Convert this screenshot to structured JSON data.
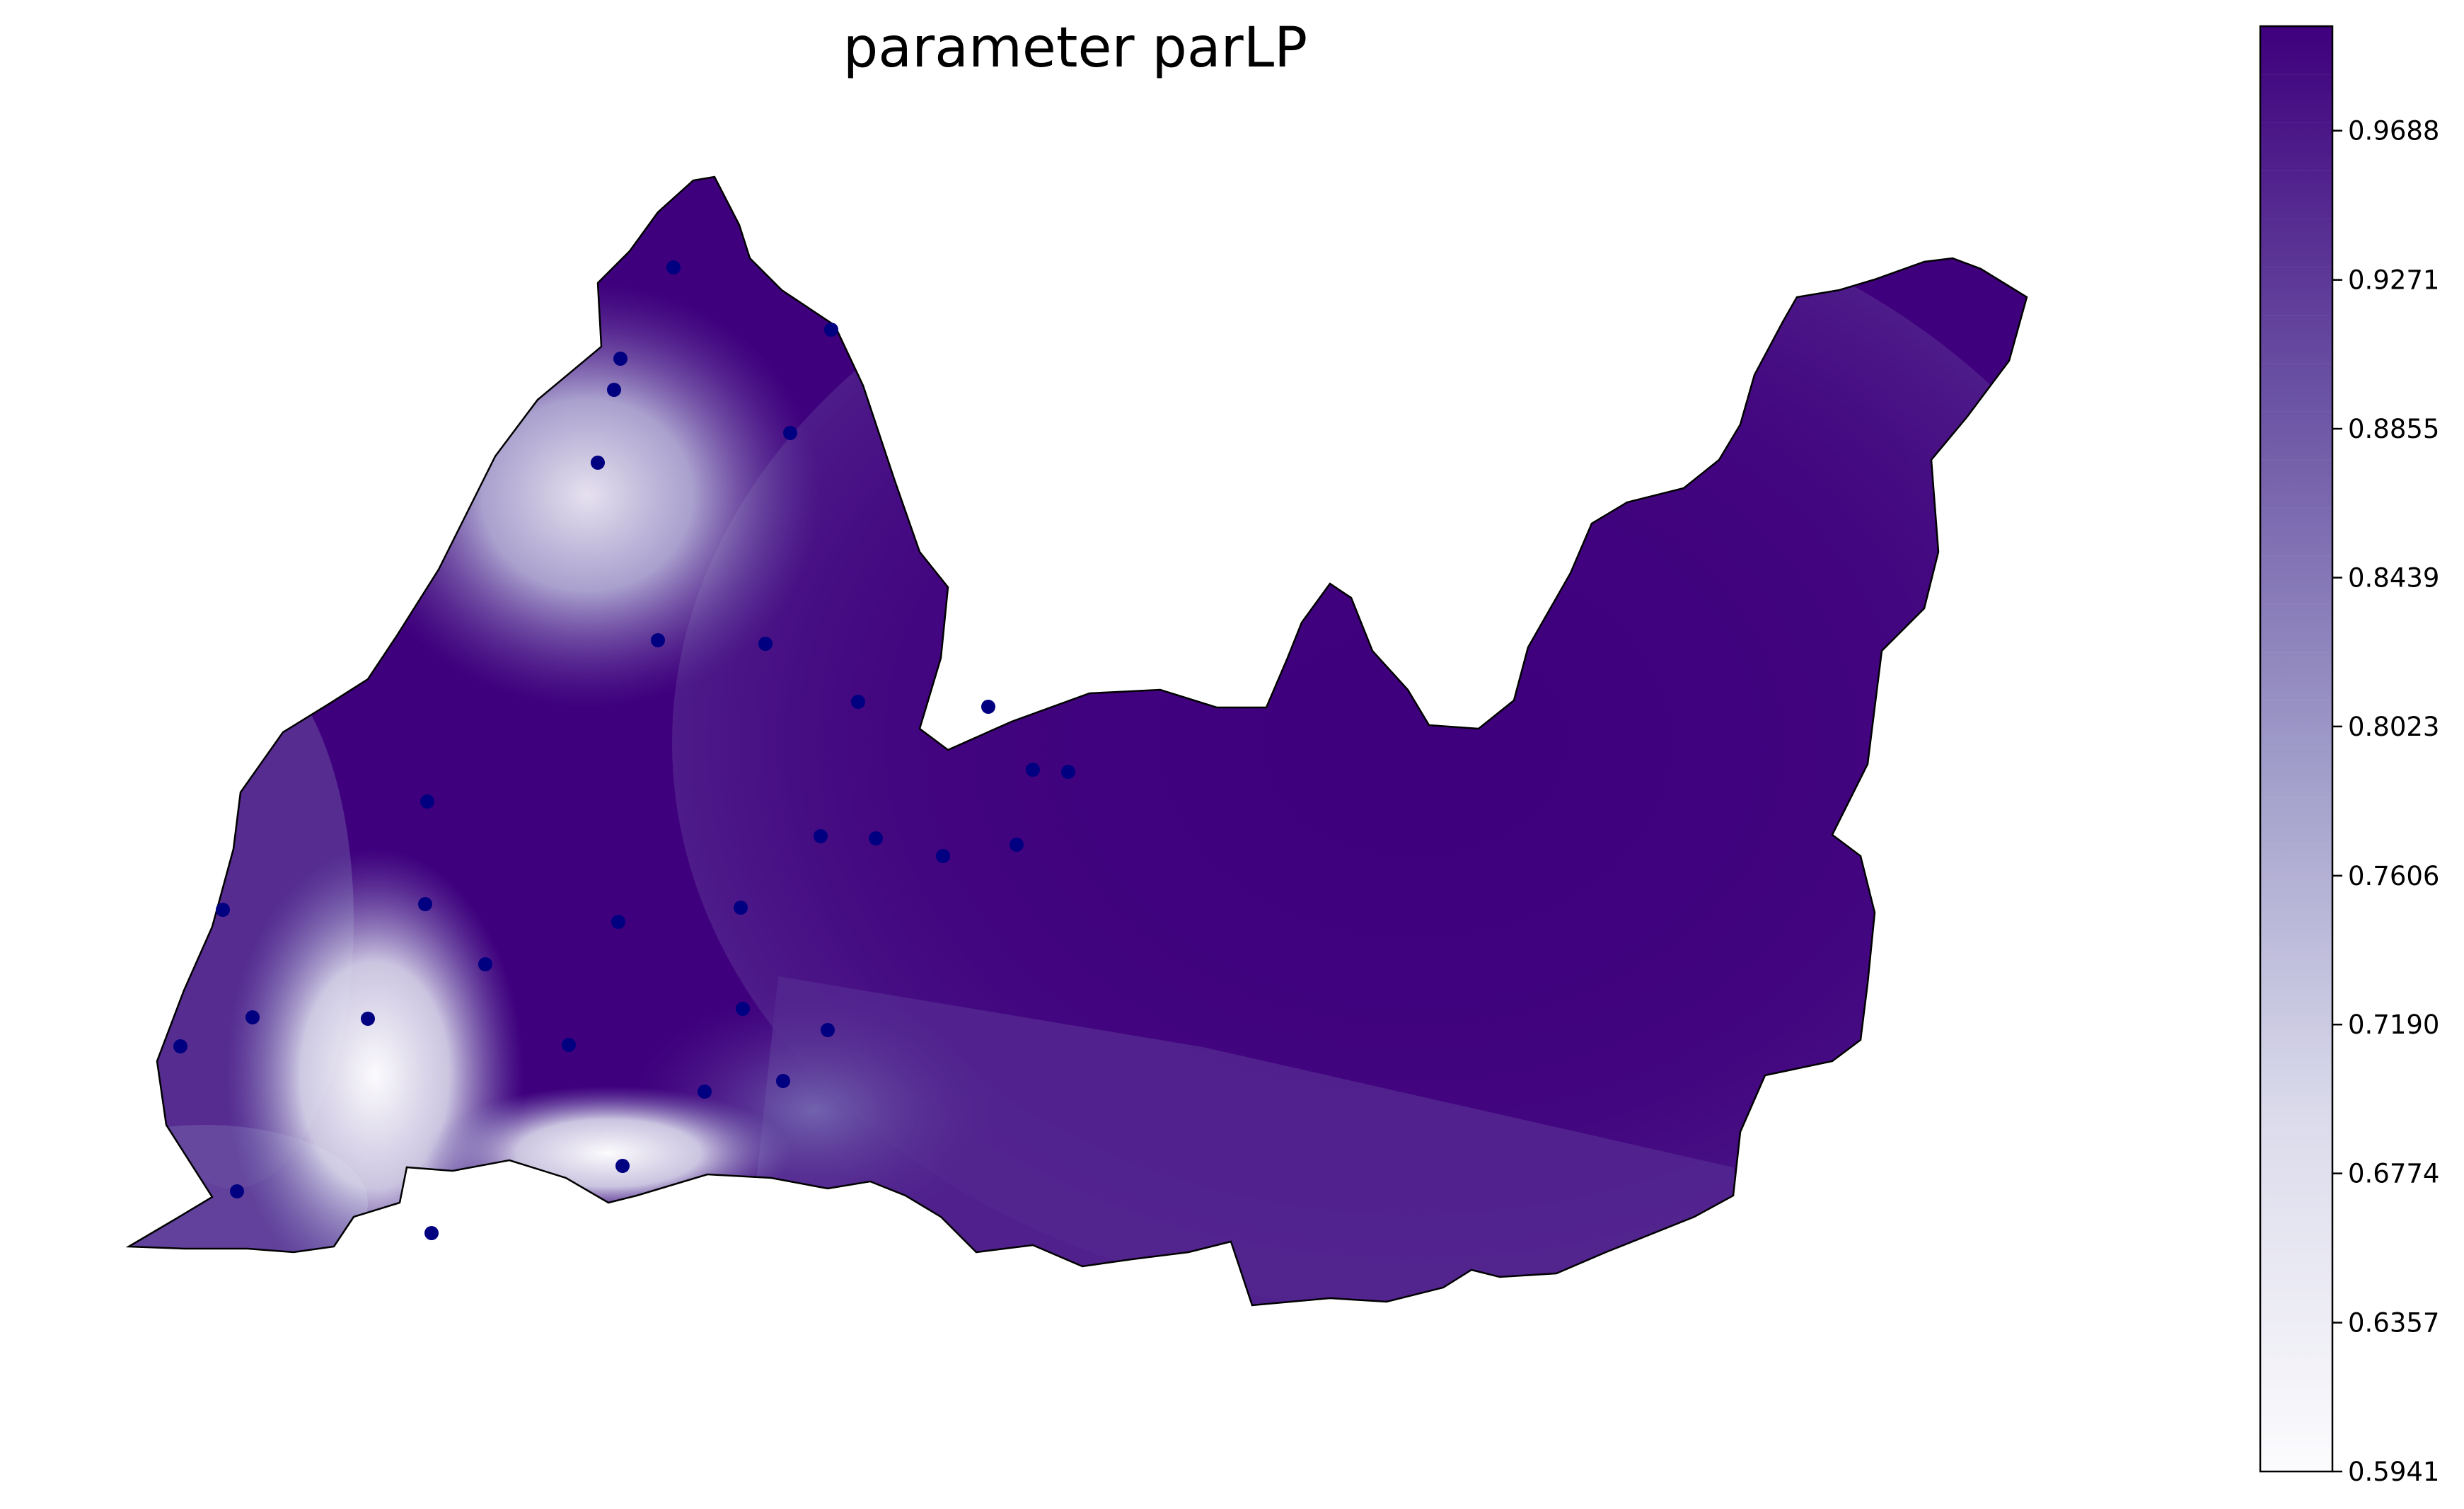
{
  "chart_data": {
    "type": "heatmap",
    "title": "parameter parLP",
    "colorbar": {
      "min": 0.5941,
      "max": 0.998,
      "levels": 30,
      "ticks": [
        "0.5941",
        "0.6357",
        "0.6774",
        "0.7190",
        "0.7606",
        "0.8023",
        "0.8439",
        "0.8855",
        "0.9271",
        "0.9688"
      ],
      "tick_values": [
        0.5941,
        0.6357,
        0.6774,
        0.719,
        0.7606,
        0.8023,
        0.8439,
        0.8855,
        0.9271,
        0.9688
      ],
      "colors": {
        "low": "#fcfbfd",
        "mid": "#9e9ac8",
        "high": "#3f007d"
      }
    },
    "station_color": "#000080",
    "station_count": 32,
    "field_description": "Interpolated surface; high values (~0.99) across most of the basin, low-value zones (~0.60-0.75) in the north-west and south-west."
  }
}
